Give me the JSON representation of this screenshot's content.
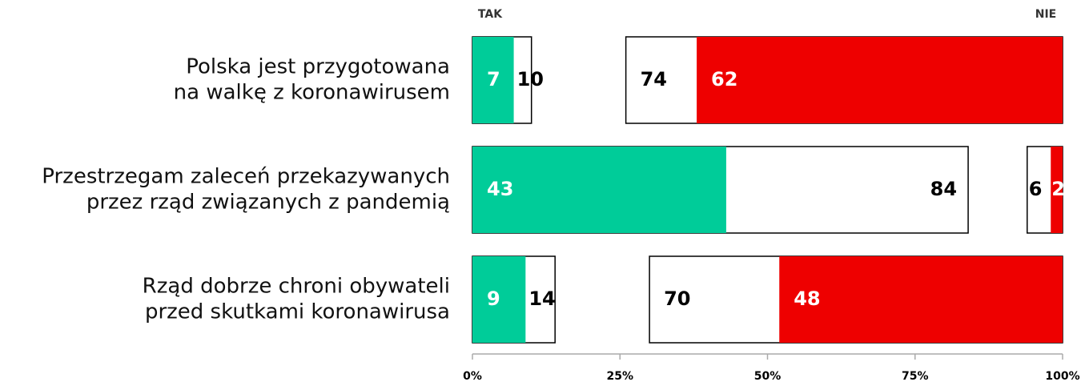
{
  "chart_data": {
    "type": "bar",
    "categories": [
      [
        "Polska jest przygotowana",
        "na walkę z koronawirusem"
      ],
      [
        "Przestrzegam zaleceń przekazywanych",
        "przez rząd związanych z pandemią"
      ],
      [
        "Rząd dobrze chroni obywateli",
        "przed skutkami koronawirusa"
      ]
    ],
    "series": [
      {
        "name": "TAK",
        "color": "#00cc99",
        "values": [
          7,
          43,
          9
        ],
        "total": [
          10,
          84,
          14
        ]
      },
      {
        "name": "NIE",
        "color": "#ee0000",
        "values": [
          62,
          2,
          48
        ],
        "total": [
          74,
          6,
          70
        ]
      }
    ],
    "xlim": [
      0,
      100
    ],
    "xticks": [
      {
        "value": 0,
        "label": "0%"
      },
      {
        "value": 25,
        "label": "25%"
      },
      {
        "value": 50,
        "label": "50%"
      },
      {
        "value": 75,
        "label": "75%"
      },
      {
        "value": 100,
        "label": "100%"
      }
    ]
  }
}
